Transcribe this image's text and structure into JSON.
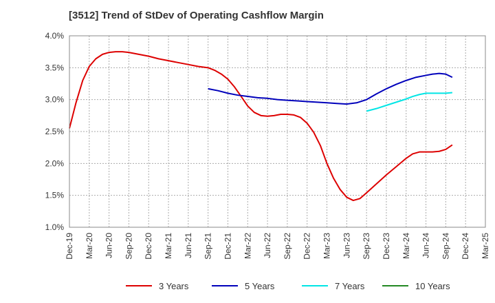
{
  "title": "[3512]  Trend of StDev of Operating Cashflow Margin",
  "chart_data": {
    "type": "line",
    "title": "[3512]  Trend of StDev of Operating Cashflow Margin",
    "xlabel": "",
    "ylabel": "",
    "ylim": [
      1.0,
      4.0
    ],
    "y_ticks": [
      "1.0%",
      "1.5%",
      "2.0%",
      "2.5%",
      "3.0%",
      "3.5%",
      "4.0%"
    ],
    "x_ticks": [
      "Dec-19",
      "Mar-20",
      "Jun-20",
      "Sep-20",
      "Dec-20",
      "Mar-21",
      "Jun-21",
      "Sep-21",
      "Dec-21",
      "Mar-22",
      "Jun-22",
      "Sep-22",
      "Dec-22",
      "Mar-23",
      "Jun-23",
      "Sep-23",
      "Dec-23",
      "Mar-24",
      "Jun-24",
      "Sep-24",
      "Dec-24",
      "Mar-25"
    ],
    "grid": true,
    "legend_position": "bottom",
    "series": [
      {
        "name": "3 Years",
        "color": "#dd0000",
        "points": [
          [
            0,
            2.55
          ],
          [
            0.33,
            2.95
          ],
          [
            0.67,
            3.3
          ],
          [
            1.0,
            3.52
          ],
          [
            1.33,
            3.64
          ],
          [
            1.67,
            3.71
          ],
          [
            2.0,
            3.74
          ],
          [
            2.33,
            3.75
          ],
          [
            2.67,
            3.75
          ],
          [
            3.0,
            3.74
          ],
          [
            3.5,
            3.71
          ],
          [
            4.0,
            3.68
          ],
          [
            4.5,
            3.64
          ],
          [
            5.0,
            3.61
          ],
          [
            5.5,
            3.58
          ],
          [
            6.0,
            3.55
          ],
          [
            6.5,
            3.52
          ],
          [
            7.0,
            3.5
          ],
          [
            7.33,
            3.46
          ],
          [
            7.67,
            3.4
          ],
          [
            8.0,
            3.32
          ],
          [
            8.33,
            3.2
          ],
          [
            8.67,
            3.05
          ],
          [
            9.0,
            2.9
          ],
          [
            9.33,
            2.8
          ],
          [
            9.67,
            2.75
          ],
          [
            10.0,
            2.74
          ],
          [
            10.33,
            2.75
          ],
          [
            10.67,
            2.77
          ],
          [
            11.0,
            2.77
          ],
          [
            11.33,
            2.76
          ],
          [
            11.67,
            2.72
          ],
          [
            12.0,
            2.63
          ],
          [
            12.33,
            2.49
          ],
          [
            12.67,
            2.28
          ],
          [
            13.0,
            2.0
          ],
          [
            13.33,
            1.77
          ],
          [
            13.67,
            1.59
          ],
          [
            14.0,
            1.47
          ],
          [
            14.33,
            1.42
          ],
          [
            14.67,
            1.45
          ],
          [
            15.0,
            1.54
          ],
          [
            15.5,
            1.68
          ],
          [
            16.0,
            1.82
          ],
          [
            16.5,
            1.95
          ],
          [
            17.0,
            2.08
          ],
          [
            17.33,
            2.15
          ],
          [
            17.67,
            2.18
          ],
          [
            18.0,
            2.18
          ],
          [
            18.33,
            2.18
          ],
          [
            18.67,
            2.19
          ],
          [
            19.0,
            2.22
          ],
          [
            19.33,
            2.29
          ]
        ]
      },
      {
        "name": "5 Years",
        "color": "#0000bb",
        "points": [
          [
            7.0,
            3.17
          ],
          [
            7.5,
            3.14
          ],
          [
            8.0,
            3.1
          ],
          [
            8.5,
            3.07
          ],
          [
            9.0,
            3.05
          ],
          [
            9.5,
            3.03
          ],
          [
            10.0,
            3.02
          ],
          [
            10.5,
            3.0
          ],
          [
            11.0,
            2.99
          ],
          [
            11.5,
            2.98
          ],
          [
            12.0,
            2.97
          ],
          [
            12.5,
            2.96
          ],
          [
            13.0,
            2.95
          ],
          [
            13.5,
            2.94
          ],
          [
            14.0,
            2.93
          ],
          [
            14.5,
            2.95
          ],
          [
            15.0,
            3.0
          ],
          [
            15.5,
            3.09
          ],
          [
            16.0,
            3.17
          ],
          [
            16.5,
            3.24
          ],
          [
            17.0,
            3.3
          ],
          [
            17.5,
            3.35
          ],
          [
            18.0,
            3.38
          ],
          [
            18.33,
            3.4
          ],
          [
            18.67,
            3.41
          ],
          [
            19.0,
            3.4
          ],
          [
            19.33,
            3.35
          ]
        ]
      },
      {
        "name": "7 Years",
        "color": "#00e5e5",
        "points": [
          [
            15.0,
            2.82
          ],
          [
            15.5,
            2.86
          ],
          [
            16.0,
            2.91
          ],
          [
            16.5,
            2.96
          ],
          [
            17.0,
            3.01
          ],
          [
            17.33,
            3.05
          ],
          [
            17.67,
            3.08
          ],
          [
            18.0,
            3.1
          ],
          [
            18.5,
            3.1
          ],
          [
            19.0,
            3.1
          ],
          [
            19.33,
            3.11
          ]
        ]
      },
      {
        "name": "10 Years",
        "color": "#228822",
        "points": []
      }
    ]
  }
}
